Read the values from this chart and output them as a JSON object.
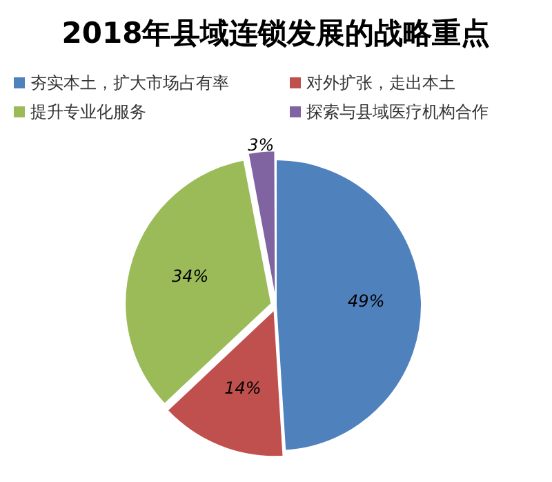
{
  "chart_data": {
    "type": "pie",
    "title": "2018年县域连锁发展的战略重点",
    "categories": [
      "夯实本土，扩大市场占有率",
      "对外扩张，走出本土",
      "提升专业化服务",
      "探索与县域医疗机构合作"
    ],
    "values": [
      49,
      14,
      34,
      3
    ],
    "colors": [
      "#4f81bd",
      "#c0504d",
      "#9bbb59",
      "#8064a2"
    ],
    "value_labels": [
      "49%",
      "14%",
      "34%",
      "3%"
    ],
    "legend": "top"
  }
}
